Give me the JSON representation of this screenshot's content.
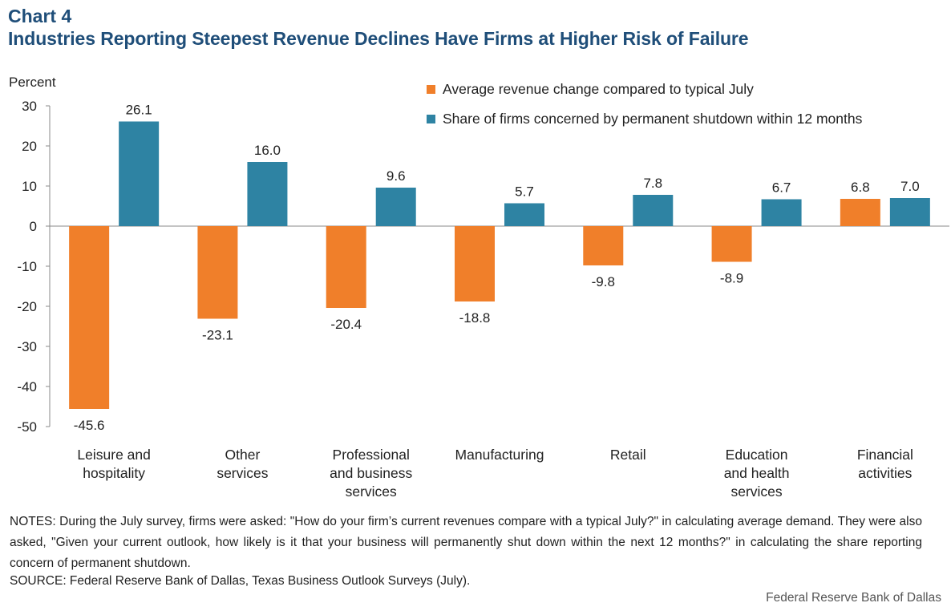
{
  "header": {
    "chart_label": "Chart 4",
    "title": "Industries Reporting Steepest Revenue Declines Have Firms at Higher Risk of Failure"
  },
  "notes": "NOTES: During the July survey, firms were asked: \"How do your firm’s current revenues compare with a typical July?\" in calculating average demand. They were also asked, \"Given your current outlook, how likely is it that your business will permanently shut down within the next 12 months?\" in calculating the share reporting concern of permanent shutdown.",
  "source": "SOURCE: Federal Reserve Bank of Dallas, Texas Business Outlook Surveys (July).",
  "credit": "Federal Reserve Bank of Dallas",
  "chart_data": {
    "type": "bar",
    "ylabel": "Percent",
    "ylim": [
      -50,
      30
    ],
    "yticks": [
      30,
      20,
      10,
      0,
      -10,
      -20,
      -30,
      -40,
      -50
    ],
    "grid": false,
    "legend_position": "top-right",
    "categories": [
      [
        "Leisure and",
        "hospitality"
      ],
      [
        "Other",
        "services"
      ],
      [
        "Professional",
        "and business",
        "services"
      ],
      [
        "Manufacturing"
      ],
      [
        "Retail"
      ],
      [
        "Education",
        "and health",
        "services"
      ],
      [
        "Financial",
        "activities"
      ]
    ],
    "series": [
      {
        "name": "Average revenue change compared to typical July",
        "color": "#f07f2a",
        "values": [
          -45.6,
          -23.1,
          -20.4,
          -18.8,
          -9.8,
          -8.9,
          6.8
        ],
        "labels": [
          "-45.6",
          "-23.1",
          "-20.4",
          "-18.8",
          "-9.8",
          "-8.9",
          "6.8"
        ]
      },
      {
        "name": "Share of firms concerned by permanent shutdown within 12 months",
        "color": "#2e83a3",
        "values": [
          26.1,
          16.0,
          9.6,
          5.7,
          7.8,
          6.7,
          7.0
        ],
        "labels": [
          "26.1",
          "16.0",
          "9.6",
          "5.7",
          "7.8",
          "6.7",
          "7.0"
        ]
      }
    ]
  }
}
